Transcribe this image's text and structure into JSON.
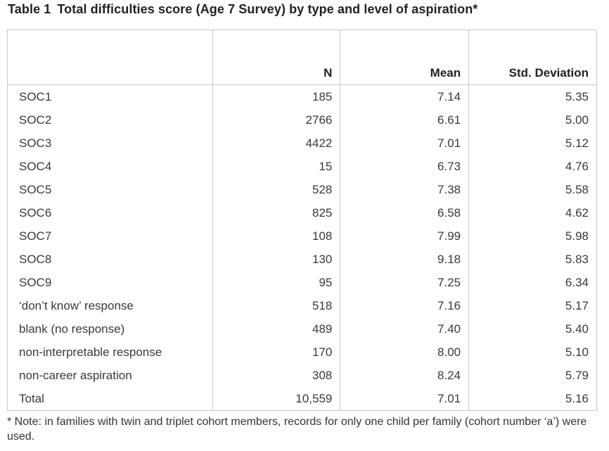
{
  "caption": {
    "label": "Table 1",
    "title": "Total difficulties score (Age 7 Survey) by type and level of aspiration*"
  },
  "table": {
    "columns": [
      "",
      "N",
      "Mean",
      "Std. Deviation"
    ],
    "rows": [
      {
        "label": "SOC1",
        "n": "185",
        "mean": "7.14",
        "sd": "5.35"
      },
      {
        "label": "SOC2",
        "n": "2766",
        "mean": "6.61",
        "sd": "5.00"
      },
      {
        "label": "SOC3",
        "n": "4422",
        "mean": "7.01",
        "sd": "5.12"
      },
      {
        "label": "SOC4",
        "n": "15",
        "mean": "6.73",
        "sd": "4.76"
      },
      {
        "label": "SOC5",
        "n": "528",
        "mean": "7.38",
        "sd": "5.58"
      },
      {
        "label": "SOC6",
        "n": "825",
        "mean": "6.58",
        "sd": "4.62"
      },
      {
        "label": "SOC7",
        "n": "108",
        "mean": "7.99",
        "sd": "5.98"
      },
      {
        "label": "SOC8",
        "n": "130",
        "mean": "9.18",
        "sd": "5.83"
      },
      {
        "label": "SOC9",
        "n": "95",
        "mean": "7.25",
        "sd": "6.34"
      },
      {
        "label": "‘don’t know’ response",
        "n": "518",
        "mean": "7.16",
        "sd": "5.17"
      },
      {
        "label": "blank (no response)",
        "n": "489",
        "mean": "7.40",
        "sd": "5.40"
      },
      {
        "label": "non-interpretable response",
        "n": "170",
        "mean": "8.00",
        "sd": "5.10"
      },
      {
        "label": "non-career aspiration",
        "n": "308",
        "mean": "8.24",
        "sd": "5.79"
      },
      {
        "label": "Total",
        "n": "10,559",
        "mean": "7.01",
        "sd": "5.16"
      }
    ]
  },
  "note": "* Note: in families with twin and triplet cohort members, records for only one child per family (cohort number ‘a’) were used."
}
